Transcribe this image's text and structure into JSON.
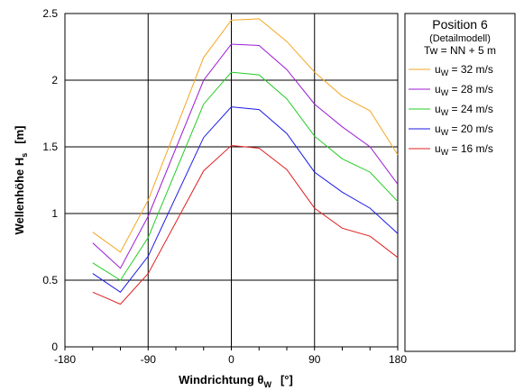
{
  "chart_data": {
    "type": "line",
    "xlabel": {
      "main": "Windrichtung θ",
      "sub": "W",
      "unit": "[°]"
    },
    "ylabel": {
      "main": "Wellenhöhe H",
      "sub": "s",
      "unit": "[m]"
    },
    "xlim": [
      -180,
      180
    ],
    "ylim": [
      0,
      2.5
    ],
    "x_ticks": [
      -180,
      -90,
      0,
      90,
      180
    ],
    "x_tick_labels": [
      "-180",
      "-90",
      "0",
      "90",
      "180"
    ],
    "y_ticks": [
      0,
      0.5,
      1,
      1.5,
      2,
      2.5
    ],
    "y_tick_labels": [
      "0",
      "0.5",
      "1",
      "1.5",
      "2",
      "2.5"
    ],
    "grid": true,
    "legend": {
      "title": "Position 6",
      "subtitle": "(Detailmodell)",
      "condition": "Tw = NN + 5 m",
      "placement": "top-right"
    },
    "x": [
      -150,
      -120,
      -90,
      -30,
      0,
      30,
      60,
      90,
      120,
      150,
      180
    ],
    "series": [
      {
        "name": "uW = 32 m/s",
        "label_main": "u",
        "label_sub": "W",
        "label_rest": " = 32 m/s",
        "color": "#f5a623",
        "values": [
          0.86,
          0.71,
          1.1,
          2.17,
          2.45,
          2.46,
          2.29,
          2.06,
          1.88,
          1.77,
          1.44
        ]
      },
      {
        "name": "uW = 28 m/s",
        "label_main": "u",
        "label_sub": "W",
        "label_rest": " = 28 m/s",
        "color": "#9b1bd6",
        "values": [
          0.78,
          0.59,
          0.98,
          2.0,
          2.27,
          2.26,
          2.08,
          1.82,
          1.65,
          1.5,
          1.22
        ]
      },
      {
        "name": "uW = 24 m/s",
        "label_main": "u",
        "label_sub": "W",
        "label_rest": " = 24 m/s",
        "color": "#22cc22",
        "values": [
          0.63,
          0.5,
          0.82,
          1.82,
          2.06,
          2.04,
          1.86,
          1.58,
          1.41,
          1.31,
          1.09
        ]
      },
      {
        "name": "uW = 20 m/s",
        "label_main": "u",
        "label_sub": "W",
        "label_rest": " = 20 m/s",
        "color": "#1a1ae6",
        "values": [
          0.55,
          0.41,
          0.68,
          1.57,
          1.8,
          1.78,
          1.6,
          1.31,
          1.16,
          1.04,
          0.85
        ]
      },
      {
        "name": "uW = 16 m/s",
        "label_main": "u",
        "label_sub": "W",
        "label_rest": " = 16 m/s",
        "color": "#e02020",
        "values": [
          0.41,
          0.32,
          0.55,
          1.32,
          1.51,
          1.49,
          1.33,
          1.04,
          0.89,
          0.83,
          0.67
        ]
      }
    ]
  }
}
